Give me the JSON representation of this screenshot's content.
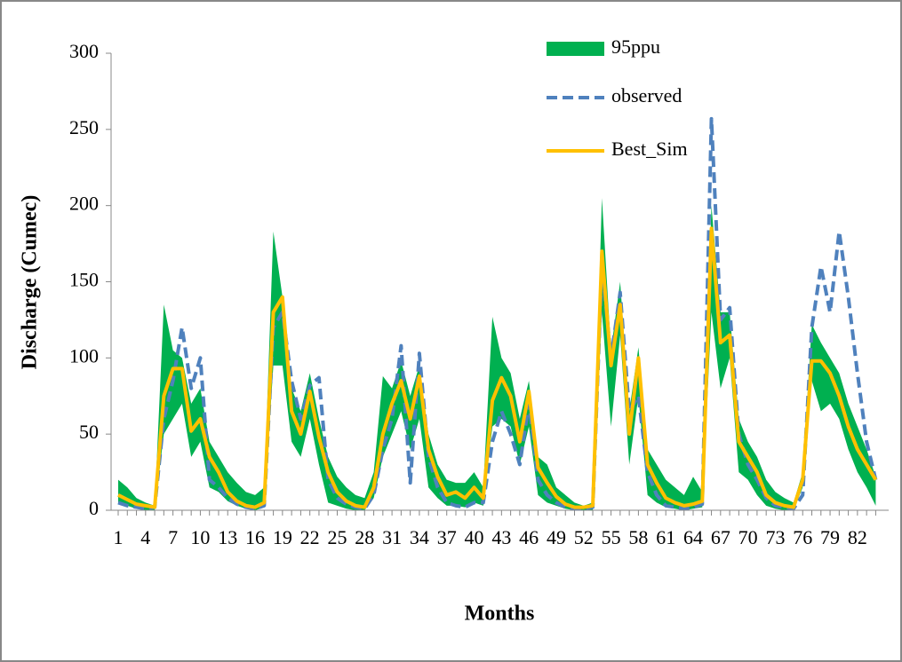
{
  "chart_data": {
    "type": "band-line",
    "y_label": "Discharge (Cumec)",
    "x_label": "Months",
    "categories": [
      1,
      null,
      null,
      4,
      null,
      null,
      7,
      null,
      null,
      10,
      null,
      null,
      13,
      null,
      null,
      16,
      null,
      null,
      19,
      null,
      null,
      22,
      null,
      null,
      25,
      null,
      null,
      28,
      null,
      null,
      31,
      null,
      null,
      34,
      null,
      null,
      37,
      null,
      null,
      40,
      null,
      null,
      43,
      null,
      null,
      46,
      null,
      null,
      49,
      null,
      null,
      52,
      null,
      null,
      55,
      null,
      null,
      58,
      null,
      null,
      61,
      null,
      null,
      64,
      null,
      null,
      67,
      null,
      null,
      70,
      null,
      null,
      73,
      null,
      null,
      76,
      null,
      null,
      79,
      null,
      null,
      82,
      null,
      null
    ],
    "series": [
      {
        "name": "95ppu",
        "color": "#00b050",
        "lower": [
          5,
          3,
          1,
          0,
          0,
          50,
          60,
          70,
          35,
          45,
          15,
          12,
          6,
          3,
          1,
          0,
          2,
          95,
          95,
          45,
          35,
          60,
          30,
          5,
          3,
          1,
          0,
          0,
          8,
          35,
          50,
          65,
          40,
          60,
          15,
          8,
          3,
          3,
          2,
          5,
          3,
          55,
          60,
          55,
          30,
          55,
          10,
          5,
          3,
          1,
          0,
          0,
          0,
          130,
          55,
          115,
          30,
          75,
          10,
          5,
          2,
          1,
          0,
          1,
          2,
          130,
          80,
          100,
          25,
          20,
          10,
          3,
          1,
          0,
          0,
          15,
          85,
          65,
          70,
          60,
          40,
          25,
          15,
          3
        ],
        "upper": [
          20,
          15,
          8,
          5,
          3,
          135,
          105,
          100,
          70,
          80,
          45,
          35,
          25,
          18,
          12,
          10,
          15,
          183,
          140,
          80,
          65,
          90,
          60,
          35,
          22,
          15,
          10,
          8,
          25,
          88,
          80,
          98,
          75,
          95,
          50,
          30,
          20,
          18,
          18,
          25,
          15,
          127,
          100,
          90,
          60,
          85,
          35,
          30,
          15,
          10,
          5,
          3,
          5,
          205,
          105,
          150,
          65,
          107,
          40,
          30,
          20,
          15,
          10,
          22,
          12,
          200,
          130,
          130,
          60,
          45,
          35,
          20,
          12,
          8,
          5,
          25,
          122,
          110,
          100,
          90,
          70,
          55,
          40,
          22
        ]
      },
      {
        "name": "observed",
        "color": "#4f81bd",
        "values": [
          5,
          3,
          2,
          1,
          2,
          60,
          85,
          120,
          80,
          100,
          20,
          15,
          8,
          4,
          2,
          1,
          3,
          120,
          130,
          85,
          60,
          82,
          87,
          20,
          8,
          4,
          2,
          1,
          10,
          40,
          60,
          108,
          18,
          103,
          35,
          15,
          5,
          3,
          2,
          5,
          5,
          45,
          65,
          50,
          30,
          70,
          20,
          10,
          5,
          2,
          1,
          1,
          2,
          160,
          100,
          143,
          65,
          75,
          25,
          10,
          3,
          2,
          1,
          2,
          4,
          257,
          125,
          133,
          50,
          30,
          20,
          8,
          3,
          2,
          1,
          10,
          120,
          160,
          130,
          183,
          140,
          90,
          45,
          20
        ]
      },
      {
        "name": "Best_Sim",
        "color": "#ffc000",
        "values": [
          10,
          7,
          4,
          3,
          2,
          75,
          93,
          93,
          52,
          60,
          35,
          25,
          12,
          6,
          3,
          2,
          5,
          130,
          140,
          65,
          50,
          78,
          48,
          25,
          12,
          6,
          3,
          2,
          15,
          50,
          70,
          85,
          60,
          88,
          40,
          22,
          10,
          12,
          8,
          15,
          8,
          72,
          87,
          75,
          45,
          78,
          28,
          18,
          9,
          4,
          2,
          2,
          3,
          170,
          95,
          135,
          50,
          100,
          30,
          18,
          8,
          5,
          3,
          4,
          6,
          185,
          110,
          115,
          45,
          35,
          25,
          10,
          5,
          3,
          2,
          20,
          98,
          98,
          90,
          75,
          55,
          40,
          30,
          20
        ]
      }
    ],
    "ylim": [
      0,
      300
    ],
    "yticks": [
      0,
      50,
      100,
      150,
      200,
      250,
      300
    ]
  }
}
